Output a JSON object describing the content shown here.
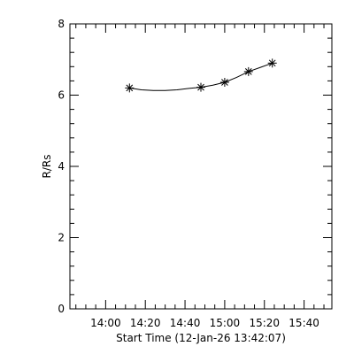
{
  "chart_data": {
    "type": "scatter",
    "xlabel": "Start Time (12-Jan-26 13:42:07)",
    "ylabel": "R/Rs",
    "xlim": [
      "13:42",
      "15:54"
    ],
    "ylim": [
      0,
      8
    ],
    "x_ticks": [
      "14:00",
      "14:20",
      "14:40",
      "15:00",
      "15:20",
      "15:40"
    ],
    "y_ticks": [
      "0",
      "2",
      "4",
      "6",
      "8"
    ],
    "grid": false,
    "legend": "none",
    "marker": "asterisk",
    "colors": {
      "foreground": "#000000",
      "background": "#ffffff"
    },
    "series": [
      {
        "x": [
          "14:12",
          "14:48",
          "15:00",
          "15:12",
          "15:24"
        ],
        "y": [
          6.2,
          6.22,
          6.36,
          6.66,
          6.9
        ]
      }
    ],
    "fit_curve": {
      "x": [
        "14:12",
        "14:18",
        "14:24",
        "14:30",
        "14:36",
        "14:42",
        "14:48",
        "14:54",
        "15:00",
        "15:06",
        "15:12",
        "15:18",
        "15:24"
      ],
      "y": [
        6.2,
        6.15,
        6.13,
        6.13,
        6.15,
        6.19,
        6.22,
        6.28,
        6.36,
        6.5,
        6.66,
        6.78,
        6.9
      ]
    }
  }
}
